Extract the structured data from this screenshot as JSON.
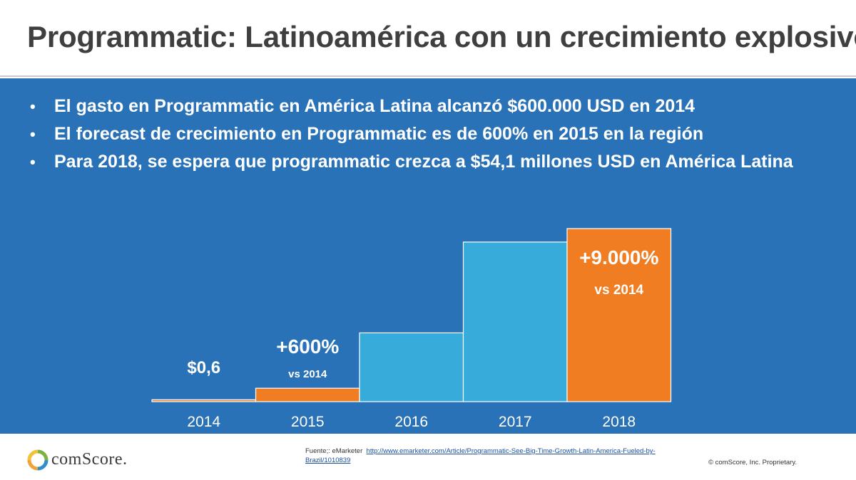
{
  "slide": {
    "title": "Programmatic: Latinoamérica con un crecimiento explosivo",
    "bullet_marker": "•",
    "bullets": [
      "El gasto en Programmatic en América Latina alcanzó $600.000 USD en 2014",
      "El forecast de crecimiento en Programmatic es de 600% en 2015 en la región",
      "Para 2018, se espera que programmatic crezca a $54,1 millones USD en América Latina"
    ]
  },
  "colors": {
    "panel": "#2a72b8",
    "orange": "#f07d21",
    "light_blue": "#37abd9",
    "title_text": "#3f3f3f"
  },
  "chart_data": {
    "type": "bar",
    "categories": [
      "2014",
      "2015",
      "2016",
      "2017",
      "2018"
    ],
    "values": [
      0.6,
      4.2,
      21.5,
      49.9,
      54.1
    ],
    "bar_colors": [
      "orange",
      "orange",
      "light_blue",
      "light_blue",
      "orange"
    ],
    "ylim": [
      0,
      54.1
    ],
    "grid": false,
    "annotations": [
      {
        "category": "2014",
        "main": "$0,6",
        "sub": ""
      },
      {
        "category": "2015",
        "main": "+600%",
        "sub": "vs 2014"
      },
      {
        "category": "2018",
        "main": "+9.000%",
        "sub": "vs 2014"
      }
    ]
  },
  "footer": {
    "logo_text": "comScore.",
    "source_label": "Fuente;: eMarketer",
    "source_link": "http://www.emarketer.com/Article/Programmatic-See-Big-Time-Growth-Latin-America-Fueled-by-Brazil/1010839",
    "copyright": "© comScore, Inc. Proprietary."
  }
}
